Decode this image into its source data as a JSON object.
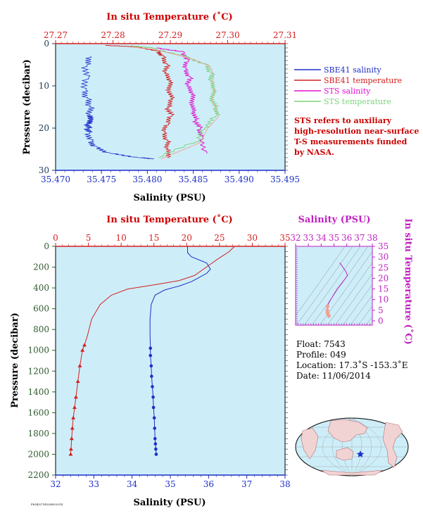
{
  "colors": {
    "plot_bg": "#cdeef9",
    "salinity": "#1e2fc8",
    "temperature": "#d42020",
    "sts_salinity": "#e010d0",
    "sts_temperature": "#7bd37b",
    "sts_temp_light": "#f0a090",
    "ts_axis": "#c020c0",
    "pressure_label": "#2f5a2f",
    "frame": "#000000"
  },
  "top_panel": {
    "top_axis_title": "In situ Temperature (˚C)",
    "bottom_axis_title": "Salinity (PSU)",
    "left_axis_title": "Pressure (decibar)",
    "legend": [
      {
        "label": "SBE41 salinity",
        "color_key": "salinity"
      },
      {
        "label": "SBE41 temperature",
        "color_key": "temperature"
      },
      {
        "label": "STS salinity",
        "color_key": "sts_salinity"
      },
      {
        "label": "STS temperature",
        "color_key": "sts_temperature"
      }
    ],
    "note_lines": [
      "STS refers to auxiliary",
      "high-resolution near-surface",
      "T-S measurements funded",
      "by NASA."
    ]
  },
  "bottom_panel": {
    "top_axis_title": "In situ Temperature (˚C)",
    "bottom_axis_title": "Salinity (PSU)",
    "left_axis_title": "Pressure (decibar)"
  },
  "ts_panel": {
    "top_axis_title": "Salinity (PSU)",
    "right_axis_title": "In situ Temperature (˚C)"
  },
  "float_info": {
    "float_line": "Float:  7543",
    "profile_line": "Profile:  049",
    "location_line": "Location:  17.3˚S  -153.3˚E",
    "date_line": "Date:  11/06/2014"
  },
  "footer_code": "F6543/7543/049/2014",
  "chart_data": [
    {
      "type": "line",
      "panel": "top",
      "y_axis": {
        "label": "Pressure (decibar)",
        "range": [
          0,
          30
        ],
        "inverted": true,
        "ticks": [
          0,
          10,
          20,
          30
        ],
        "tick_labels": [
          "0",
          "10",
          "20",
          "30"
        ]
      },
      "x_bottom": {
        "label": "Salinity (PSU)",
        "range": [
          35.47,
          35.495
        ],
        "ticks": [
          35.47,
          35.475,
          35.48,
          35.485,
          35.49,
          35.495
        ],
        "tick_labels": [
          "35.470",
          "35.475",
          "35.480",
          "35.485",
          "35.490",
          "35.495"
        ]
      },
      "x_top": {
        "label": "In situ Temperature (˚C)",
        "range": [
          27.27,
          27.31
        ],
        "ticks": [
          27.27,
          27.28,
          27.29,
          27.3,
          27.31
        ],
        "tick_labels": [
          "27.27",
          "27.28",
          "27.29",
          "27.30",
          "27.31"
        ]
      },
      "series": [
        {
          "name": "SBE41 salinity",
          "axis": "bottom",
          "color_key": "salinity",
          "x": [
            35.4738,
            35.4734,
            35.4736,
            35.4733,
            35.4735,
            35.4737,
            35.4734,
            35.4736,
            35.4733,
            35.4735,
            35.4737,
            35.474,
            35.4745,
            35.476,
            35.479,
            35.4805
          ],
          "y": [
            3,
            5,
            8,
            11,
            13,
            15,
            17,
            18,
            19,
            20,
            21,
            23,
            24.5,
            26,
            27,
            27.3
          ]
        },
        {
          "name": "SBE41 temperature",
          "axis": "top",
          "color_key": "temperature",
          "x": [
            27.2787,
            27.2845,
            27.2881,
            27.2889,
            27.2895,
            27.289,
            27.2898,
            27.2893,
            27.2901,
            27.2895,
            27.2903,
            27.2897,
            27.289,
            27.2895,
            27.2893,
            27.2895
          ],
          "y": [
            0.4,
            0.8,
            1.8,
            3,
            5,
            7,
            9,
            11,
            13,
            15,
            17,
            19,
            21,
            23,
            25,
            27
          ]
        },
        {
          "name": "STS salinity",
          "axis": "bottom",
          "color_key": "sts_salinity",
          "x": [
            35.481,
            35.484,
            35.4845,
            35.4842,
            35.4847,
            35.4843,
            35.4848,
            35.4846,
            35.4849,
            35.4852,
            35.4858,
            35.486,
            35.4865
          ],
          "y": [
            1,
            2,
            4,
            6,
            8,
            10,
            12,
            14,
            16,
            18,
            20,
            22,
            26
          ]
        },
        {
          "name": "STS temperature",
          "axis": "top",
          "color_key": "sts_temperature",
          "x": [
            27.283,
            27.2868,
            27.2928,
            27.2965,
            27.2972,
            27.297,
            27.2974,
            27.2968,
            27.2977,
            27.298,
            27.296,
            27.295,
            27.288
          ],
          "y": [
            0.5,
            1,
            3,
            5,
            7,
            9,
            11,
            13,
            15,
            17,
            20,
            23,
            27
          ]
        }
      ]
    },
    {
      "type": "line",
      "panel": "bottom",
      "y_axis": {
        "label": "Pressure (decibar)",
        "range": [
          0,
          2200
        ],
        "inverted": true,
        "ticks": [
          0,
          200,
          400,
          600,
          800,
          1000,
          1200,
          1400,
          1600,
          1800,
          2000,
          2200
        ],
        "tick_labels": [
          "0",
          "200",
          "400",
          "600",
          "800",
          "1000",
          "1200",
          "1400",
          "1600",
          "1800",
          "2000",
          "2200"
        ]
      },
      "x_bottom": {
        "label": "Salinity (PSU)",
        "range": [
          32,
          38
        ],
        "ticks": [
          32,
          33,
          34,
          35,
          36,
          37,
          38
        ],
        "tick_labels": [
          "32",
          "33",
          "34",
          "35",
          "36",
          "37",
          "38"
        ]
      },
      "x_top": {
        "label": "In situ Temperature (˚C)",
        "range": [
          0,
          35
        ],
        "ticks": [
          0,
          5,
          10,
          15,
          20,
          25,
          30,
          35
        ],
        "tick_labels": [
          "0",
          "5",
          "10",
          "15",
          "20",
          "25",
          "30",
          "35"
        ]
      },
      "series": [
        {
          "name": "Salinity",
          "axis": "bottom",
          "color_key": "salinity",
          "x": [
            35.45,
            35.45,
            35.55,
            35.95,
            36.05,
            35.95,
            35.75,
            35.55,
            35.25,
            34.85,
            34.6,
            34.5,
            34.47,
            34.47,
            34.48,
            34.48,
            34.5,
            34.51,
            34.53,
            34.55,
            34.56,
            34.58,
            34.59,
            34.6,
            34.61,
            34.62,
            34.63
          ],
          "y": [
            0,
            60,
            100,
            160,
            220,
            260,
            300,
            340,
            380,
            420,
            470,
            560,
            700,
            850,
            980,
            1050,
            1150,
            1250,
            1350,
            1450,
            1550,
            1650,
            1750,
            1850,
            1900,
            1950,
            2000
          ]
        },
        {
          "name": "Temperature",
          "axis": "top",
          "color_key": "temperature",
          "x": [
            27.3,
            26.5,
            24.8,
            23.0,
            21.2,
            18.8,
            15.0,
            11.0,
            8.5,
            6.8,
            5.5,
            4.9,
            4.4,
            4.1,
            3.7,
            3.4,
            3.1,
            2.9,
            2.7,
            2.55,
            2.45,
            2.35,
            2.3
          ],
          "y": [
            0,
            50,
            120,
            200,
            280,
            330,
            370,
            410,
            470,
            560,
            700,
            850,
            950,
            1000,
            1150,
            1300,
            1450,
            1550,
            1650,
            1750,
            1850,
            1950,
            2000
          ]
        }
      ]
    },
    {
      "type": "scatter",
      "panel": "ts",
      "x_axis": {
        "label": "Salinity (PSU)",
        "range": [
          32,
          38
        ],
        "ticks": [
          32,
          33,
          34,
          35,
          36,
          37,
          38
        ],
        "tick_labels": [
          "32",
          "33",
          "34",
          "35",
          "36",
          "37",
          "38"
        ]
      },
      "y_axis": {
        "label": "In situ Temperature (˚C)",
        "range": [
          -2,
          35
        ],
        "ticks": [
          0,
          5,
          10,
          15,
          20,
          25,
          30,
          35
        ],
        "tick_labels": [
          "0",
          "5",
          "10",
          "15",
          "20",
          "25",
          "30",
          "35"
        ]
      },
      "series": [
        {
          "name": "T-S",
          "color_key": "ts_axis",
          "x": [
            35.45,
            35.55,
            35.95,
            36.05,
            35.75,
            35.25,
            34.85,
            34.6,
            34.5,
            34.48,
            34.5,
            34.55,
            34.6
          ],
          "y": [
            27.3,
            26.5,
            23.0,
            21.2,
            18.8,
            15.0,
            11.0,
            8.5,
            6.8,
            4.9,
            3.7,
            2.9,
            2.3
          ]
        }
      ]
    }
  ]
}
